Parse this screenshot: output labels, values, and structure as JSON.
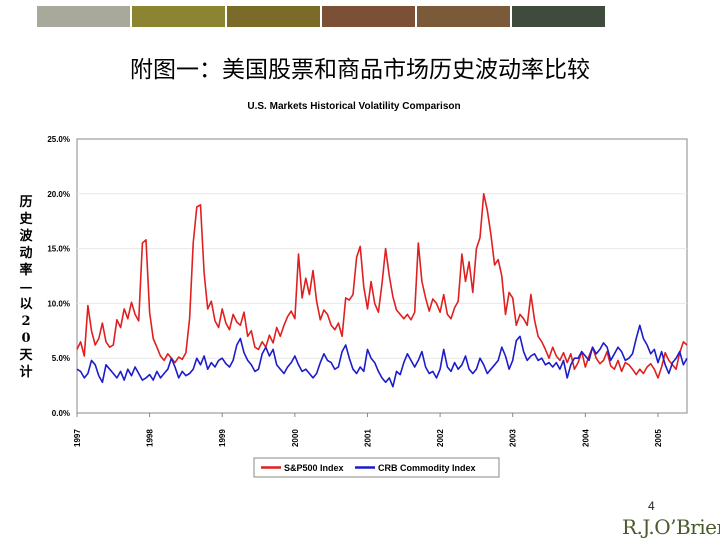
{
  "header": {
    "bar_colors": [
      "#a8a99a",
      "#8c8431",
      "#7a6b28",
      "#7c4f37",
      "#7a5a38",
      "#3f4b3d",
      "#455553",
      "#474f52"
    ]
  },
  "slide_title": "附图一：美国股票和商品市场历史波动率比较",
  "y_axis_caption": "历史波动率—以20天计",
  "page_number": "4",
  "logo_text": "R.J.O’Brien",
  "chart_data": {
    "type": "line",
    "title": "U.S. Markets Historical Volatility Comparison",
    "ylabel": "",
    "xlabel": "",
    "ylim": [
      0,
      25
    ],
    "y_ticks": [
      "0.0%",
      "5.0%",
      "10.0%",
      "15.0%",
      "20.0%",
      "25.0%"
    ],
    "y_tick_values": [
      0,
      5,
      10,
      15,
      20,
      25
    ],
    "xlim": [
      1997.0,
      2005.4
    ],
    "x_ticks": [
      "1997",
      "1998",
      "1999",
      "2000",
      "2001",
      "2002",
      "2003",
      "2004",
      "2005"
    ],
    "x_tick_values": [
      1997,
      1998,
      1999,
      2000,
      2001,
      2002,
      2003,
      2004,
      2005
    ],
    "legend_position": "bottom-center",
    "series": [
      {
        "name": "S&P500 Index",
        "color": "#e02020",
        "x": [
          1997.0,
          1997.05,
          1997.1,
          1997.15,
          1997.2,
          1997.25,
          1997.3,
          1997.35,
          1997.4,
          1997.45,
          1997.5,
          1997.55,
          1997.6,
          1997.65,
          1997.7,
          1997.75,
          1997.8,
          1997.85,
          1997.9,
          1997.95,
          1998.0,
          1998.05,
          1998.1,
          1998.15,
          1998.2,
          1998.25,
          1998.3,
          1998.35,
          1998.4,
          1998.45,
          1998.5,
          1998.55,
          1998.6,
          1998.65,
          1998.7,
          1998.75,
          1998.8,
          1998.85,
          1998.9,
          1998.95,
          1999.0,
          1999.05,
          1999.1,
          1999.15,
          1999.2,
          1999.25,
          1999.3,
          1999.35,
          1999.4,
          1999.45,
          1999.5,
          1999.55,
          1999.6,
          1999.65,
          1999.7,
          1999.75,
          1999.8,
          1999.85,
          1999.9,
          1999.95,
          2000.0,
          2000.05,
          2000.1,
          2000.15,
          2000.2,
          2000.25,
          2000.3,
          2000.35,
          2000.4,
          2000.45,
          2000.5,
          2000.55,
          2000.6,
          2000.65,
          2000.7,
          2000.75,
          2000.8,
          2000.85,
          2000.9,
          2000.95,
          2001.0,
          2001.05,
          2001.1,
          2001.15,
          2001.2,
          2001.25,
          2001.3,
          2001.35,
          2001.4,
          2001.45,
          2001.5,
          2001.55,
          2001.6,
          2001.65,
          2001.7,
          2001.75,
          2001.8,
          2001.85,
          2001.9,
          2001.95,
          2002.0,
          2002.05,
          2002.1,
          2002.15,
          2002.2,
          2002.25,
          2002.3,
          2002.35,
          2002.4,
          2002.45,
          2002.5,
          2002.55,
          2002.6,
          2002.65,
          2002.7,
          2002.75,
          2002.8,
          2002.85,
          2002.9,
          2002.95,
          2003.0,
          2003.05,
          2003.1,
          2003.15,
          2003.2,
          2003.25,
          2003.3,
          2003.35,
          2003.4,
          2003.45,
          2003.5,
          2003.55,
          2003.6,
          2003.65,
          2003.7,
          2003.75,
          2003.8,
          2003.85,
          2003.9,
          2003.95,
          2004.0,
          2004.05,
          2004.1,
          2004.15,
          2004.2,
          2004.25,
          2004.3,
          2004.35,
          2004.4,
          2004.45,
          2004.5,
          2004.55,
          2004.6,
          2004.65,
          2004.7,
          2004.75,
          2004.8,
          2004.85,
          2004.9,
          2004.95,
          2005.0,
          2005.05,
          2005.1,
          2005.15,
          2005.2,
          2005.25,
          2005.3,
          2005.35,
          2005.4
        ],
        "values": [
          5.8,
          6.5,
          5.2,
          9.8,
          7.5,
          6.2,
          6.8,
          8.2,
          6.5,
          6.0,
          6.2,
          8.5,
          7.8,
          9.5,
          8.6,
          10.1,
          9.0,
          8.4,
          15.5,
          15.8,
          9.2,
          6.8,
          6.0,
          5.2,
          4.8,
          5.4,
          5.0,
          4.6,
          5.1,
          4.9,
          5.5,
          8.6,
          15.5,
          18.8,
          19.0,
          12.8,
          9.5,
          10.2,
          8.4,
          7.8,
          9.5,
          8.2,
          7.6,
          9.0,
          8.3,
          8.0,
          9.2,
          7.0,
          7.5,
          6.0,
          5.8,
          6.5,
          6.0,
          7.1,
          6.4,
          7.8,
          7.0,
          8.0,
          8.8,
          9.3,
          8.6,
          14.5,
          10.5,
          12.3,
          10.8,
          13.0,
          10.2,
          8.5,
          9.4,
          9.0,
          8.0,
          7.6,
          8.2,
          7.0,
          10.5,
          10.3,
          10.8,
          14.2,
          15.2,
          11.5,
          9.5,
          12.0,
          10.0,
          9.2,
          11.8,
          15.0,
          12.5,
          10.6,
          9.4,
          9.0,
          8.6,
          9.0,
          8.5,
          9.2,
          15.5,
          12.0,
          10.5,
          9.3,
          10.4,
          10.0,
          9.2,
          10.8,
          9.0,
          8.6,
          9.6,
          10.2,
          14.5,
          12.0,
          13.8,
          11.0,
          15.0,
          16.0,
          20.0,
          18.5,
          16.3,
          13.5,
          14.0,
          12.5,
          9.0,
          11.0,
          10.5,
          8.0,
          9.0,
          8.6,
          8.0,
          10.8,
          8.5,
          7.0,
          6.5,
          5.8,
          5.0,
          6.0,
          5.2,
          4.8,
          5.5,
          4.6,
          5.4,
          4.0,
          4.6,
          5.6,
          4.2,
          5.2,
          6.0,
          5.0,
          4.5,
          4.8,
          5.6,
          4.3,
          4.0,
          4.8,
          3.8,
          4.6,
          4.4,
          4.0,
          3.5,
          4.0,
          3.6,
          4.2,
          4.5,
          4.0,
          3.2,
          4.2,
          5.5,
          4.8,
          4.4,
          4.0,
          5.5,
          6.5,
          6.2
        ]
      },
      {
        "name": "CRB Commodity Index",
        "color": "#1c1ccc",
        "x": [
          1997.0,
          1997.05,
          1997.1,
          1997.15,
          1997.2,
          1997.25,
          1997.3,
          1997.35,
          1997.4,
          1997.45,
          1997.5,
          1997.55,
          1997.6,
          1997.65,
          1997.7,
          1997.75,
          1997.8,
          1997.85,
          1997.9,
          1997.95,
          1998.0,
          1998.05,
          1998.1,
          1998.15,
          1998.2,
          1998.25,
          1998.3,
          1998.35,
          1998.4,
          1998.45,
          1998.5,
          1998.55,
          1998.6,
          1998.65,
          1998.7,
          1998.75,
          1998.8,
          1998.85,
          1998.9,
          1998.95,
          1999.0,
          1999.05,
          1999.1,
          1999.15,
          1999.2,
          1999.25,
          1999.3,
          1999.35,
          1999.4,
          1999.45,
          1999.5,
          1999.55,
          1999.6,
          1999.65,
          1999.7,
          1999.75,
          1999.8,
          1999.85,
          1999.9,
          1999.95,
          2000.0,
          2000.05,
          2000.1,
          2000.15,
          2000.2,
          2000.25,
          2000.3,
          2000.35,
          2000.4,
          2000.45,
          2000.5,
          2000.55,
          2000.6,
          2000.65,
          2000.7,
          2000.75,
          2000.8,
          2000.85,
          2000.9,
          2000.95,
          2001.0,
          2001.05,
          2001.1,
          2001.15,
          2001.2,
          2001.25,
          2001.3,
          2001.35,
          2001.4,
          2001.45,
          2001.5,
          2001.55,
          2001.6,
          2001.65,
          2001.7,
          2001.75,
          2001.8,
          2001.85,
          2001.9,
          2001.95,
          2002.0,
          2002.05,
          2002.1,
          2002.15,
          2002.2,
          2002.25,
          2002.3,
          2002.35,
          2002.4,
          2002.45,
          2002.5,
          2002.55,
          2002.6,
          2002.65,
          2002.7,
          2002.75,
          2002.8,
          2002.85,
          2002.9,
          2002.95,
          2003.0,
          2003.05,
          2003.1,
          2003.15,
          2003.2,
          2003.25,
          2003.3,
          2003.35,
          2003.4,
          2003.45,
          2003.5,
          2003.55,
          2003.6,
          2003.65,
          2003.7,
          2003.75,
          2003.8,
          2003.85,
          2003.9,
          2003.95,
          2004.0,
          2004.05,
          2004.1,
          2004.15,
          2004.2,
          2004.25,
          2004.3,
          2004.35,
          2004.4,
          2004.45,
          2004.5,
          2004.55,
          2004.6,
          2004.65,
          2004.7,
          2004.75,
          2004.8,
          2004.85,
          2004.9,
          2004.95,
          2005.0,
          2005.05,
          2005.1,
          2005.15,
          2005.2,
          2005.25,
          2005.3,
          2005.35,
          2005.4
        ],
        "values": [
          4.0,
          3.8,
          3.2,
          3.6,
          4.8,
          4.4,
          3.4,
          2.8,
          4.4,
          4.0,
          3.6,
          3.2,
          3.8,
          3.0,
          4.0,
          3.4,
          4.2,
          3.6,
          3.0,
          3.2,
          3.5,
          3.0,
          3.8,
          3.2,
          3.6,
          4.0,
          5.0,
          4.2,
          3.2,
          3.8,
          3.4,
          3.6,
          4.0,
          5.0,
          4.4,
          5.2,
          4.0,
          4.6,
          4.2,
          4.8,
          5.0,
          4.5,
          4.2,
          4.8,
          6.2,
          6.8,
          5.5,
          4.8,
          4.4,
          3.8,
          4.0,
          5.4,
          6.0,
          5.2,
          5.8,
          4.4,
          4.0,
          3.6,
          4.2,
          4.6,
          5.2,
          4.4,
          3.8,
          4.0,
          3.6,
          3.2,
          3.6,
          4.6,
          5.4,
          4.8,
          4.6,
          4.0,
          4.2,
          5.6,
          6.2,
          5.0,
          4.0,
          3.6,
          4.2,
          3.8,
          5.8,
          5.0,
          4.6,
          3.8,
          3.2,
          2.8,
          3.2,
          2.4,
          3.8,
          3.5,
          4.6,
          5.4,
          4.8,
          4.2,
          4.8,
          5.6,
          4.2,
          3.6,
          3.8,
          3.2,
          4.0,
          5.8,
          4.2,
          3.8,
          4.6,
          4.0,
          4.4,
          5.2,
          4.0,
          3.6,
          4.0,
          5.0,
          4.4,
          3.6,
          4.0,
          4.4,
          4.8,
          6.0,
          5.2,
          4.0,
          4.8,
          6.6,
          7.0,
          5.6,
          4.8,
          5.2,
          5.4,
          4.8,
          5.0,
          4.4,
          4.6,
          4.2,
          4.6,
          4.0,
          4.8,
          3.2,
          4.4,
          5.0,
          5.0,
          5.6,
          5.2,
          4.8,
          6.0,
          5.4,
          5.8,
          6.4,
          6.0,
          4.8,
          5.4,
          6.0,
          5.6,
          4.8,
          5.0,
          5.4,
          6.8,
          8.0,
          6.8,
          6.2,
          5.4,
          5.8,
          4.6,
          5.6,
          4.4,
          3.6,
          4.6,
          5.0,
          5.6,
          4.4,
          5.0
        ]
      }
    ]
  }
}
